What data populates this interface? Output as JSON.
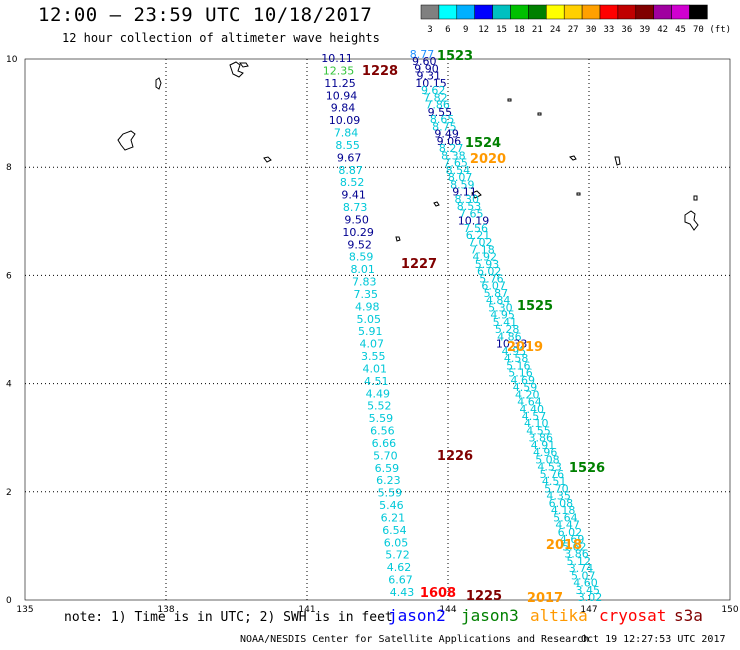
{
  "title": "12:00 — 23:59 UTC 10/18/2017",
  "subtitle": "12 hour collection of altimeter wave heights",
  "colorbar": {
    "unit": "(ft)",
    "labels": [
      "3",
      "6",
      "9",
      "12",
      "15",
      "18",
      "21",
      "24",
      "27",
      "30",
      "33",
      "36",
      "39",
      "42",
      "45",
      "70"
    ],
    "colors": [
      "#808080",
      "#00ffff",
      "#00b0ff",
      "#0000ff",
      "#00c0c0",
      "#00c000",
      "#008000",
      "#ffff00",
      "#ffd000",
      "#ffa000",
      "#ff0000",
      "#c00000",
      "#800000",
      "#a000a0",
      "#d000d0",
      "#000000"
    ]
  },
  "axes": {
    "x_ticks": [
      "135",
      "138",
      "141",
      "144",
      "147",
      "150"
    ],
    "y_ticks": [
      "0",
      "2",
      "4",
      "6",
      "8",
      "10"
    ]
  },
  "level_colors": {
    "gray": "#808080",
    "cyan": "#00c8d8",
    "sky": "#1e90ff",
    "navy": "#000090",
    "green": "#33c33a",
    "darkred": "#800000",
    "green_label": "#008000",
    "orange_label": "#ff9900",
    "red_label": "#ff0000"
  },
  "pass_labels": [
    {
      "text": "1523",
      "color": "green_label"
    },
    {
      "text": "1228",
      "color": "darkred"
    },
    {
      "text": "1524",
      "color": "green_label"
    },
    {
      "text": "2020",
      "color": "orange_label"
    },
    {
      "text": "1227",
      "color": "darkred"
    },
    {
      "text": "1525",
      "color": "green_label"
    },
    {
      "text": "2019",
      "color": "orange_label"
    },
    {
      "text": "1226",
      "color": "darkred"
    },
    {
      "text": "1526",
      "color": "green_label"
    },
    {
      "text": "2018",
      "color": "orange_label"
    },
    {
      "text": "1608",
      "color": "red_label"
    },
    {
      "text": "1225",
      "color": "darkred"
    },
    {
      "text": "2017",
      "color": "orange_label"
    }
  ],
  "tracks": {
    "jason2_west": [
      {
        "text": "10.11",
        "color": "navy"
      },
      {
        "text": "12.35",
        "color": "green"
      },
      {
        "text": "11.25",
        "color": "navy"
      },
      {
        "text": "10.94",
        "color": "navy"
      },
      {
        "text": "9.84",
        "color": "navy"
      },
      {
        "text": "10.09",
        "color": "navy"
      },
      {
        "text": "7.84",
        "color": "cyan"
      },
      {
        "text": "8.55",
        "color": "cyan"
      },
      {
        "text": "9.67",
        "color": "navy"
      },
      {
        "text": "8.87",
        "color": "cyan"
      },
      {
        "text": "8.52",
        "color": "cyan"
      },
      {
        "text": "9.41",
        "color": "navy"
      },
      {
        "text": "8.73",
        "color": "cyan"
      },
      {
        "text": "9.50",
        "color": "navy"
      },
      {
        "text": "10.29",
        "color": "navy"
      },
      {
        "text": "9.52",
        "color": "navy"
      },
      {
        "text": "8.59",
        "color": "cyan"
      },
      {
        "text": "8.01",
        "color": "cyan"
      },
      {
        "text": "7.83",
        "color": "cyan"
      },
      {
        "text": "7.35",
        "color": "cyan"
      },
      {
        "text": "4.98",
        "color": "cyan"
      },
      {
        "text": "5.05",
        "color": "cyan"
      },
      {
        "text": "5.91",
        "color": "cyan"
      },
      {
        "text": "4.07",
        "color": "cyan"
      },
      {
        "text": "3.55",
        "color": "cyan"
      },
      {
        "text": "4.01",
        "color": "cyan"
      },
      {
        "text": "4.51",
        "color": "cyan"
      },
      {
        "text": "4.49",
        "color": "cyan"
      },
      {
        "text": "5.52",
        "color": "cyan"
      },
      {
        "text": "5.59",
        "color": "cyan"
      },
      {
        "text": "6.56",
        "color": "cyan"
      },
      {
        "text": "6.66",
        "color": "cyan"
      },
      {
        "text": "5.70",
        "color": "cyan"
      },
      {
        "text": "6.59",
        "color": "cyan"
      },
      {
        "text": "6.23",
        "color": "cyan"
      },
      {
        "text": "5.59",
        "color": "cyan"
      },
      {
        "text": "5.46",
        "color": "cyan"
      },
      {
        "text": "6.21",
        "color": "cyan"
      },
      {
        "text": "6.54",
        "color": "cyan"
      },
      {
        "text": "6.05",
        "color": "cyan"
      },
      {
        "text": "5.72",
        "color": "cyan"
      },
      {
        "text": "4.62",
        "color": "cyan"
      },
      {
        "text": "6.67",
        "color": "cyan"
      },
      {
        "text": "4.43",
        "color": "cyan"
      }
    ],
    "jason3_east": [
      {
        "text": "8.77",
        "color": "sky"
      },
      {
        "text": "9.60",
        "color": "navy"
      },
      {
        "text": "9.90",
        "color": "navy"
      },
      {
        "text": "9.31",
        "color": "navy"
      },
      {
        "text": "10.15",
        "color": "navy"
      },
      {
        "text": "9.62",
        "color": "cyan"
      },
      {
        "text": "7.82",
        "color": "cyan"
      },
      {
        "text": "7.86",
        "color": "cyan"
      },
      {
        "text": "9.55",
        "color": "navy"
      },
      {
        "text": "8.65",
        "color": "cyan"
      },
      {
        "text": "8.75",
        "color": "cyan"
      },
      {
        "text": "9.49",
        "color": "navy"
      },
      {
        "text": "9.06",
        "color": "navy"
      },
      {
        "text": "8.27",
        "color": "cyan"
      },
      {
        "text": "8.38",
        "color": "cyan"
      },
      {
        "text": "7.65",
        "color": "cyan"
      },
      {
        "text": "8.54",
        "color": "cyan"
      },
      {
        "text": "8.07",
        "color": "cyan"
      },
      {
        "text": "8.59",
        "color": "cyan"
      },
      {
        "text": "9.11",
        "color": "navy"
      },
      {
        "text": "8.30",
        "color": "cyan"
      },
      {
        "text": "8.53",
        "color": "cyan"
      },
      {
        "text": "7.65",
        "color": "cyan"
      },
      {
        "text": "10.19",
        "color": "navy"
      },
      {
        "text": "7.56",
        "color": "cyan"
      },
      {
        "text": "6.21",
        "color": "cyan"
      },
      {
        "text": "7.02",
        "color": "cyan"
      },
      {
        "text": "7.18",
        "color": "cyan"
      },
      {
        "text": "4.92",
        "color": "cyan"
      },
      {
        "text": "5.93",
        "color": "cyan"
      },
      {
        "text": "6.02",
        "color": "cyan"
      },
      {
        "text": "5.76",
        "color": "cyan"
      },
      {
        "text": "6.07",
        "color": "cyan"
      },
      {
        "text": "5.87",
        "color": "cyan"
      },
      {
        "text": "4.84",
        "color": "cyan"
      },
      {
        "text": "5.30",
        "color": "cyan"
      },
      {
        "text": "4.95",
        "color": "cyan"
      },
      {
        "text": "5.41",
        "color": "cyan"
      },
      {
        "text": "5.28",
        "color": "cyan"
      },
      {
        "text": "4.86",
        "color": "cyan"
      },
      {
        "text": "10.33",
        "color": "navy"
      },
      {
        "text": "4.95",
        "color": "cyan"
      },
      {
        "text": "4.58",
        "color": "cyan"
      },
      {
        "text": "5.16",
        "color": "cyan"
      },
      {
        "text": "5.16",
        "color": "cyan"
      },
      {
        "text": "4.69",
        "color": "cyan"
      },
      {
        "text": "4.59",
        "color": "cyan"
      },
      {
        "text": "4.20",
        "color": "cyan"
      },
      {
        "text": "4.64",
        "color": "cyan"
      },
      {
        "text": "4.40",
        "color": "cyan"
      },
      {
        "text": "4.57",
        "color": "cyan"
      },
      {
        "text": "4.10",
        "color": "cyan"
      },
      {
        "text": "4.55",
        "color": "cyan"
      },
      {
        "text": "3.86",
        "color": "cyan"
      },
      {
        "text": "4.91",
        "color": "cyan"
      },
      {
        "text": "4.96",
        "color": "cyan"
      },
      {
        "text": "5.08",
        "color": "cyan"
      },
      {
        "text": "4.53",
        "color": "cyan"
      },
      {
        "text": "5.76",
        "color": "cyan"
      },
      {
        "text": "4.51",
        "color": "cyan"
      },
      {
        "text": "5.70",
        "color": "cyan"
      },
      {
        "text": "4.35",
        "color": "cyan"
      },
      {
        "text": "6.08",
        "color": "cyan"
      },
      {
        "text": "4.18",
        "color": "cyan"
      },
      {
        "text": "5.64",
        "color": "cyan"
      },
      {
        "text": "4.47",
        "color": "cyan"
      },
      {
        "text": "6.02",
        "color": "cyan"
      },
      {
        "text": "4.69",
        "color": "cyan"
      },
      {
        "text": "5.62",
        "color": "cyan"
      },
      {
        "text": "3.86",
        "color": "cyan"
      },
      {
        "text": "5.12",
        "color": "cyan"
      },
      {
        "text": "3.74",
        "color": "cyan"
      },
      {
        "text": "5.07",
        "color": "cyan"
      },
      {
        "text": "4.60",
        "color": "cyan"
      },
      {
        "text": "3.45",
        "color": "cyan"
      },
      {
        "text": "3.02",
        "color": "cyan"
      }
    ]
  },
  "note": "note: 1) Time is in UTC; 2) SWH is in feet",
  "satellites": [
    {
      "text": "jason2",
      "color": "#0000ff"
    },
    {
      "text": "jason3",
      "color": "#008000"
    },
    {
      "text": "altika",
      "color": "#ff9900"
    },
    {
      "text": "cryosat",
      "color": "#ff0000"
    },
    {
      "text": "s3a",
      "color": "#800000"
    }
  ],
  "credit": "NOAA/NESDIS Center for Satellite Applications and Research",
  "timestamp": "Oct 19 12:27:53 UTC 2017"
}
